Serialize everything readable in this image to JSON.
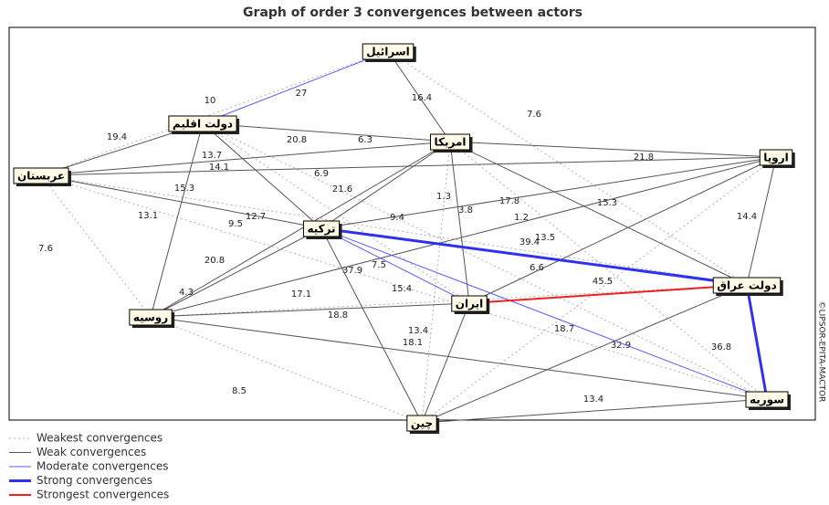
{
  "title": "Graph of order 3 convergences between actors",
  "credit": "©LIPSOR-EPITA-MACTOR",
  "nodes": [
    {
      "label": "اسرائیل"
    },
    {
      "label": "دولت اقلیم"
    },
    {
      "label": "امریکا"
    },
    {
      "label": "اروپا"
    },
    {
      "label": "عربستان"
    },
    {
      "label": "ترکیه"
    },
    {
      "label": "دولت عراق"
    },
    {
      "label": "ایران"
    },
    {
      "label": "روسیه"
    },
    {
      "label": "سوریه"
    },
    {
      "label": "چین"
    }
  ],
  "legend": [
    {
      "label": "Weakest convergences",
      "edges": [
        {
          "from": 4,
          "to": 0,
          "label": "10"
        },
        {
          "from": 0,
          "to": 6,
          "label": "7.6"
        },
        {
          "from": 2,
          "to": 9,
          "label": "17.8"
        },
        {
          "from": 4,
          "to": 8,
          "label": "7.6"
        },
        {
          "from": 8,
          "to": 10,
          "label": "8.5"
        },
        {
          "from": 1,
          "to": 7,
          "label": "13.7"
        },
        {
          "from": 1,
          "to": 9,
          "label": "9.5"
        },
        {
          "from": 2,
          "to": 10,
          "label": "3.8"
        },
        {
          "from": 3,
          "to": 10,
          "label": "13.5"
        },
        {
          "from": 4,
          "to": 6,
          "label": "1.2"
        },
        {
          "from": 8,
          "to": 6,
          "label": "37.9"
        },
        {
          "from": 4,
          "to": 9,
          "label": "15.4"
        }
      ]
    },
    {
      "label": "Weak convergences",
      "edges": [
        {
          "from": 0,
          "to": 2,
          "label": "16.4"
        },
        {
          "from": 1,
          "to": 2,
          "label": "20.8"
        },
        {
          "from": 4,
          "to": 2,
          "label": "6.3"
        },
        {
          "from": 4,
          "to": 1,
          "label": "19.4"
        },
        {
          "from": 2,
          "to": 3,
          "label": "21.8"
        },
        {
          "from": 4,
          "to": 5,
          "label": "13.1"
        },
        {
          "from": 1,
          "to": 8,
          "label": "15.3"
        },
        {
          "from": 1,
          "to": 5,
          "label": "12.7"
        },
        {
          "from": 2,
          "to": 5,
          "label": "6.9"
        },
        {
          "from": 2,
          "to": 7,
          "label": "1.3"
        },
        {
          "from": 2,
          "to": 6,
          "label": "15.3"
        },
        {
          "from": 3,
          "to": 5,
          "label": "9.4"
        },
        {
          "from": 3,
          "to": 6,
          "label": "14.4"
        },
        {
          "from": 3,
          "to": 7,
          "label": "6.6"
        },
        {
          "from": 5,
          "to": 8,
          "label": "20.8"
        },
        {
          "from": 5,
          "to": 10,
          "label": "18.8"
        },
        {
          "from": 8,
          "to": 7,
          "label": "17.1"
        },
        {
          "from": 8,
          "to": 9,
          "label": "18.1"
        },
        {
          "from": 7,
          "to": 10,
          "label": "13.4"
        },
        {
          "from": 10,
          "to": 9,
          "label": "13.4"
        },
        {
          "from": 10,
          "to": 6,
          "label": "32.9"
        },
        {
          "from": 4,
          "to": 3,
          "label": "14.1"
        },
        {
          "from": 2,
          "to": 8,
          "label": "21.6"
        },
        {
          "from": 3,
          "to": 8,
          "label": "4.3"
        }
      ]
    },
    {
      "label": "Moderate convergences",
      "edges": [
        {
          "from": 0,
          "to": 1,
          "label": "27"
        },
        {
          "from": 5,
          "to": 7,
          "label": "7.5"
        },
        {
          "from": 5,
          "to": 9,
          "label": "18.7"
        }
      ]
    },
    {
      "label": "Strong convergences",
      "edges": [
        {
          "from": 5,
          "to": 6,
          "label": "39.4"
        },
        {
          "from": 6,
          "to": 9,
          "label": "36.8"
        }
      ]
    },
    {
      "label": "Strongest convergences",
      "edges": [
        {
          "from": 7,
          "to": 6,
          "label": "45.5"
        }
      ]
    }
  ]
}
